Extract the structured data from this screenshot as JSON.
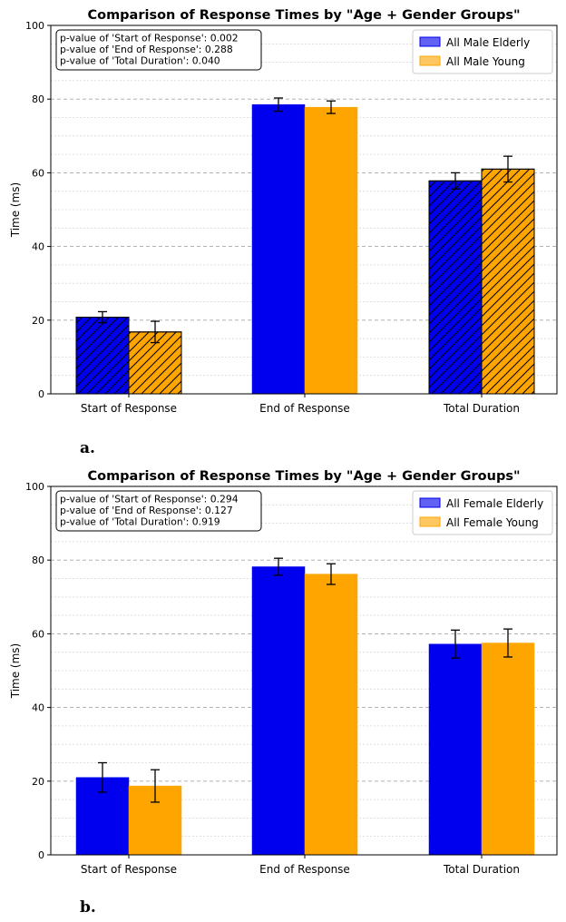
{
  "chart_data": [
    {
      "type": "bar",
      "panel_label": "a.",
      "title": "Comparison of Response Times by \"Age + Gender Groups\"",
      "xlabel": "",
      "ylabel": "Time (ms)",
      "ylim": [
        0,
        100
      ],
      "yticks": [
        "0",
        "20",
        "40",
        "60",
        "80",
        "100"
      ],
      "categories": [
        "Start of Response",
        "End of Response",
        "Total Duration"
      ],
      "hatched": [
        true,
        false,
        true
      ],
      "series": [
        {
          "name": "All Male Elderly",
          "color": "#0000ee",
          "values": [
            20.8,
            78.5,
            57.8
          ],
          "errors": [
            1.5,
            1.8,
            2.2
          ]
        },
        {
          "name": "All Male Young",
          "color": "#ffa500",
          "values": [
            16.8,
            77.8,
            61.0
          ],
          "errors": [
            2.9,
            1.7,
            3.5
          ]
        }
      ],
      "annotation": [
        "p-value of 'Start of Response': 0.002",
        "p-value of 'End of Response': 0.288",
        "p-value of 'Total Duration': 0.040"
      ],
      "legend_position": "top-right"
    },
    {
      "type": "bar",
      "panel_label": "b.",
      "title": "Comparison of Response Times by \"Age + Gender Groups\"",
      "xlabel": "",
      "ylabel": "Time (ms)",
      "ylim": [
        0,
        100
      ],
      "yticks": [
        "0",
        "20",
        "40",
        "60",
        "80",
        "100"
      ],
      "categories": [
        "Start of Response",
        "End of Response",
        "Total Duration"
      ],
      "hatched": [
        false,
        false,
        false
      ],
      "series": [
        {
          "name": "All Female Elderly",
          "color": "#0000ee",
          "values": [
            21.0,
            78.2,
            57.2
          ],
          "errors": [
            4.0,
            2.3,
            3.8
          ]
        },
        {
          "name": "All Female Young",
          "color": "#ffa500",
          "values": [
            18.7,
            76.2,
            57.5
          ],
          "errors": [
            4.4,
            2.8,
            3.8
          ]
        }
      ],
      "annotation": [
        "p-value of 'Start of Response': 0.294",
        "p-value of 'End of Response': 0.127",
        "p-value of 'Total Duration': 0.919"
      ],
      "legend_position": "top-right"
    }
  ]
}
